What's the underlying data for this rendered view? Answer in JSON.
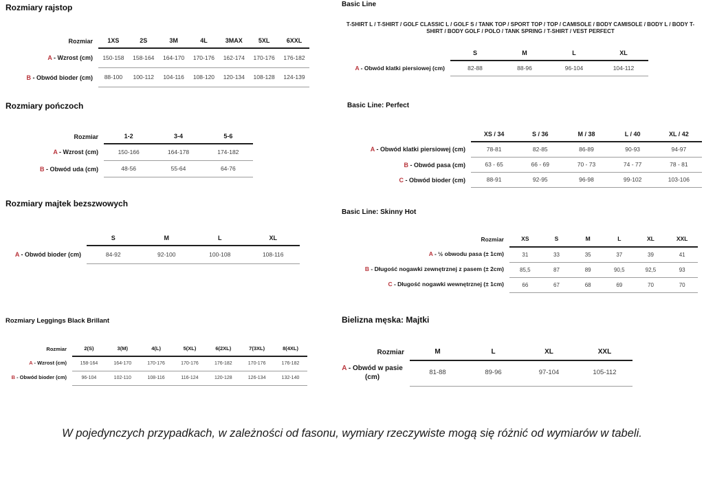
{
  "colors": {
    "accent_red": "#b8333a",
    "rule_dark": "#1f1f1f",
    "rule_light": "#9c9c9c"
  },
  "left": {
    "rajstop": {
      "title": "Rozmiary rajstop",
      "table": {
        "corner": "Rozmiar",
        "columns": [
          "1XS",
          "2S",
          "3M",
          "4L",
          "3MAX",
          "5XL",
          "6XXL"
        ],
        "rows": [
          {
            "letter": "A",
            "rest": "- Wzrost (cm)",
            "values": [
              "150-158",
              "158-164",
              "164-170",
              "170-176",
              "162-174",
              "170-176",
              "176-182"
            ]
          },
          {
            "letter": "B",
            "rest": "- Obwód bioder (cm)",
            "values": [
              "88-100",
              "100-112",
              "104-116",
              "108-120",
              "120-134",
              "108-128",
              "124-139"
            ]
          }
        ]
      }
    },
    "ponczoch": {
      "title": "Rozmiary pończoch",
      "table": {
        "corner": "Rozmiar",
        "columns": [
          "1-2",
          "3-4",
          "5-6"
        ],
        "rows": [
          {
            "letter": "A",
            "rest": "- Wzrost (cm)",
            "values": [
              "150-166",
              "164-178",
              "174-182"
            ]
          },
          {
            "letter": "B",
            "rest": "- Obwód uda (cm)",
            "values": [
              "48-56",
              "55-64",
              "64-76"
            ]
          }
        ]
      }
    },
    "majtek": {
      "title": "Rozmiary majtek bezszwowych",
      "table": {
        "corner": "",
        "columns": [
          "S",
          "M",
          "L",
          "XL"
        ],
        "rows": [
          {
            "letter": "A",
            "rest": "- Obwód bioder (cm)",
            "values": [
              "84-92",
              "92-100",
              "100-108",
              "108-116"
            ]
          }
        ]
      }
    },
    "leggings": {
      "title": "Rozmiary Leggings Black Brillant",
      "table": {
        "corner": "Rozmiar",
        "columns": [
          "2(S)",
          "3(M)",
          "4(L)",
          "5(XL)",
          "6(2XL)",
          "7(3XL)",
          "8(4XL)"
        ],
        "rows": [
          {
            "letter": "A",
            "rest": "- Wzrost (cm)",
            "values": [
              "158-164",
              "164-170",
              "170-176",
              "170-176",
              "176-182",
              "170-176",
              "176-182"
            ]
          },
          {
            "letter": "B",
            "rest": "- Obwód bioder (cm)",
            "values": [
              "96-104",
              "102-110",
              "108-116",
              "116-124",
              "120-128",
              "126-134",
              "132-140"
            ]
          }
        ]
      }
    }
  },
  "right": {
    "basic_line": {
      "title": "Basic Line",
      "subtitle": "T-SHIRT L / T-SHIRT / GOLF CLASSIC L / GOLF S / TANK TOP / SPORT TOP / TOP / CAMISOLE / BODY CAMISOLE / BODY L / BODY T-SHIRT / BODY GOLF / POLO / TANK SPRING / T-SHIRT / VEST PERFECT",
      "table": {
        "corner": "",
        "columns": [
          "S",
          "M",
          "L",
          "XL"
        ],
        "rows": [
          {
            "letter": "A",
            "rest": "- Obwód klatki piersiowej (cm)",
            "values": [
              "82-88",
              "88-96",
              "96-104",
              "104-112"
            ]
          }
        ]
      }
    },
    "perfect": {
      "title": "Basic Line: Perfect",
      "table": {
        "corner": "",
        "columns": [
          "XS / 34",
          "S / 36",
          "M / 38",
          "L / 40",
          "XL / 42"
        ],
        "rows": [
          {
            "letter": "A",
            "rest": "- Obwód klatki piersiowej (cm)",
            "values": [
              "78-81",
              "82-85",
              "86-89",
              "90-93",
              "94-97"
            ]
          },
          {
            "letter": "B",
            "rest": "- Obwód pasa (cm)",
            "values": [
              "63 - 65",
              "66 - 69",
              "70 - 73",
              "74 - 77",
              "78 - 81"
            ]
          },
          {
            "letter": "C",
            "rest": "- Obwód bioder (cm)",
            "values": [
              "88-91",
              "92-95",
              "96-98",
              "99-102",
              "103-106"
            ]
          }
        ]
      }
    },
    "skinny": {
      "title": "Basic Line: Skinny Hot",
      "table": {
        "corner": "Rozmiar",
        "columns": [
          "XS",
          "S",
          "M",
          "L",
          "XL",
          "XXL"
        ],
        "rows": [
          {
            "letter": "A",
            "rest": "- ½ obwodu pasa (± 1cm)",
            "values": [
              "31",
              "33",
              "35",
              "37",
              "39",
              "41"
            ]
          },
          {
            "letter": "B",
            "rest": "- Długość nogawki zewnętrznej z pasem (± 2cm)",
            "values": [
              "85,5",
              "87",
              "89",
              "90,5",
              "92,5",
              "93"
            ]
          },
          {
            "letter": "C",
            "rest": "- Długość nogawki wewnętrznej (± 1cm)",
            "values": [
              "66",
              "67",
              "68",
              "69",
              "70",
              "70"
            ]
          }
        ]
      }
    },
    "majtki": {
      "title": "Bielizna męska: Majtki",
      "table": {
        "corner": "Rozmiar",
        "columns": [
          "M",
          "L",
          "XL",
          "XXL"
        ],
        "rows": [
          {
            "letter": "A",
            "rest": "- Obwód w pasie (cm)",
            "values": [
              "81-88",
              "89-96",
              "97-104",
              "105-112"
            ]
          }
        ]
      }
    }
  },
  "footnote": "W pojedynczych przypadkach, w zależności od fasonu, wymiary rzeczywiste mogą się różnić od wymiarów w tabeli."
}
